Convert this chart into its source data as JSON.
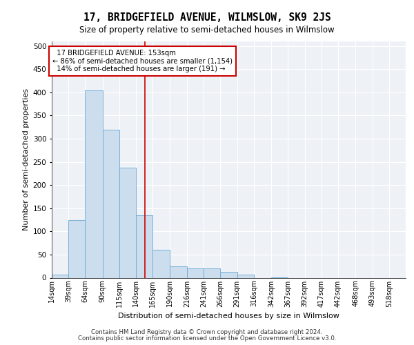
{
  "title": "17, BRIDGEFIELD AVENUE, WILMSLOW, SK9 2JS",
  "subtitle": "Size of property relative to semi-detached houses in Wilmslow",
  "xlabel": "Distribution of semi-detached houses by size in Wilmslow",
  "ylabel": "Number of semi-detached properties",
  "bar_color": "#ccdded",
  "bar_edge_color": "#6aaad4",
  "property_line_value": 153,
  "property_label": "17 BRIDGEFIELD AVENUE: 153sqm",
  "pct_smaller": 86,
  "n_smaller": 1154,
  "pct_larger": 14,
  "n_larger": 191,
  "categories": [
    "14sqm",
    "39sqm",
    "64sqm",
    "90sqm",
    "115sqm",
    "140sqm",
    "165sqm",
    "190sqm",
    "216sqm",
    "241sqm",
    "266sqm",
    "291sqm",
    "316sqm",
    "342sqm",
    "367sqm",
    "392sqm",
    "417sqm",
    "442sqm",
    "468sqm",
    "493sqm",
    "518sqm"
  ],
  "values": [
    7,
    124,
    404,
    320,
    237,
    135,
    60,
    24,
    20,
    20,
    12,
    6,
    0,
    1,
    0,
    0,
    0,
    0,
    0,
    0,
    0
  ],
  "bin_edges": [
    14,
    39,
    64,
    90,
    115,
    140,
    165,
    190,
    216,
    241,
    266,
    291,
    316,
    342,
    367,
    392,
    417,
    442,
    468,
    493,
    518,
    543
  ],
  "ylim": [
    0,
    510
  ],
  "yticks": [
    0,
    50,
    100,
    150,
    200,
    250,
    300,
    350,
    400,
    450,
    500
  ],
  "footnote1": "Contains HM Land Registry data © Crown copyright and database right 2024.",
  "footnote2": "Contains public sector information licensed under the Open Government Licence v3.0.",
  "background_color": "#eef2f7",
  "grid_color": "#ffffff",
  "box_color": "#cc0000",
  "vline_color": "#cc0000"
}
